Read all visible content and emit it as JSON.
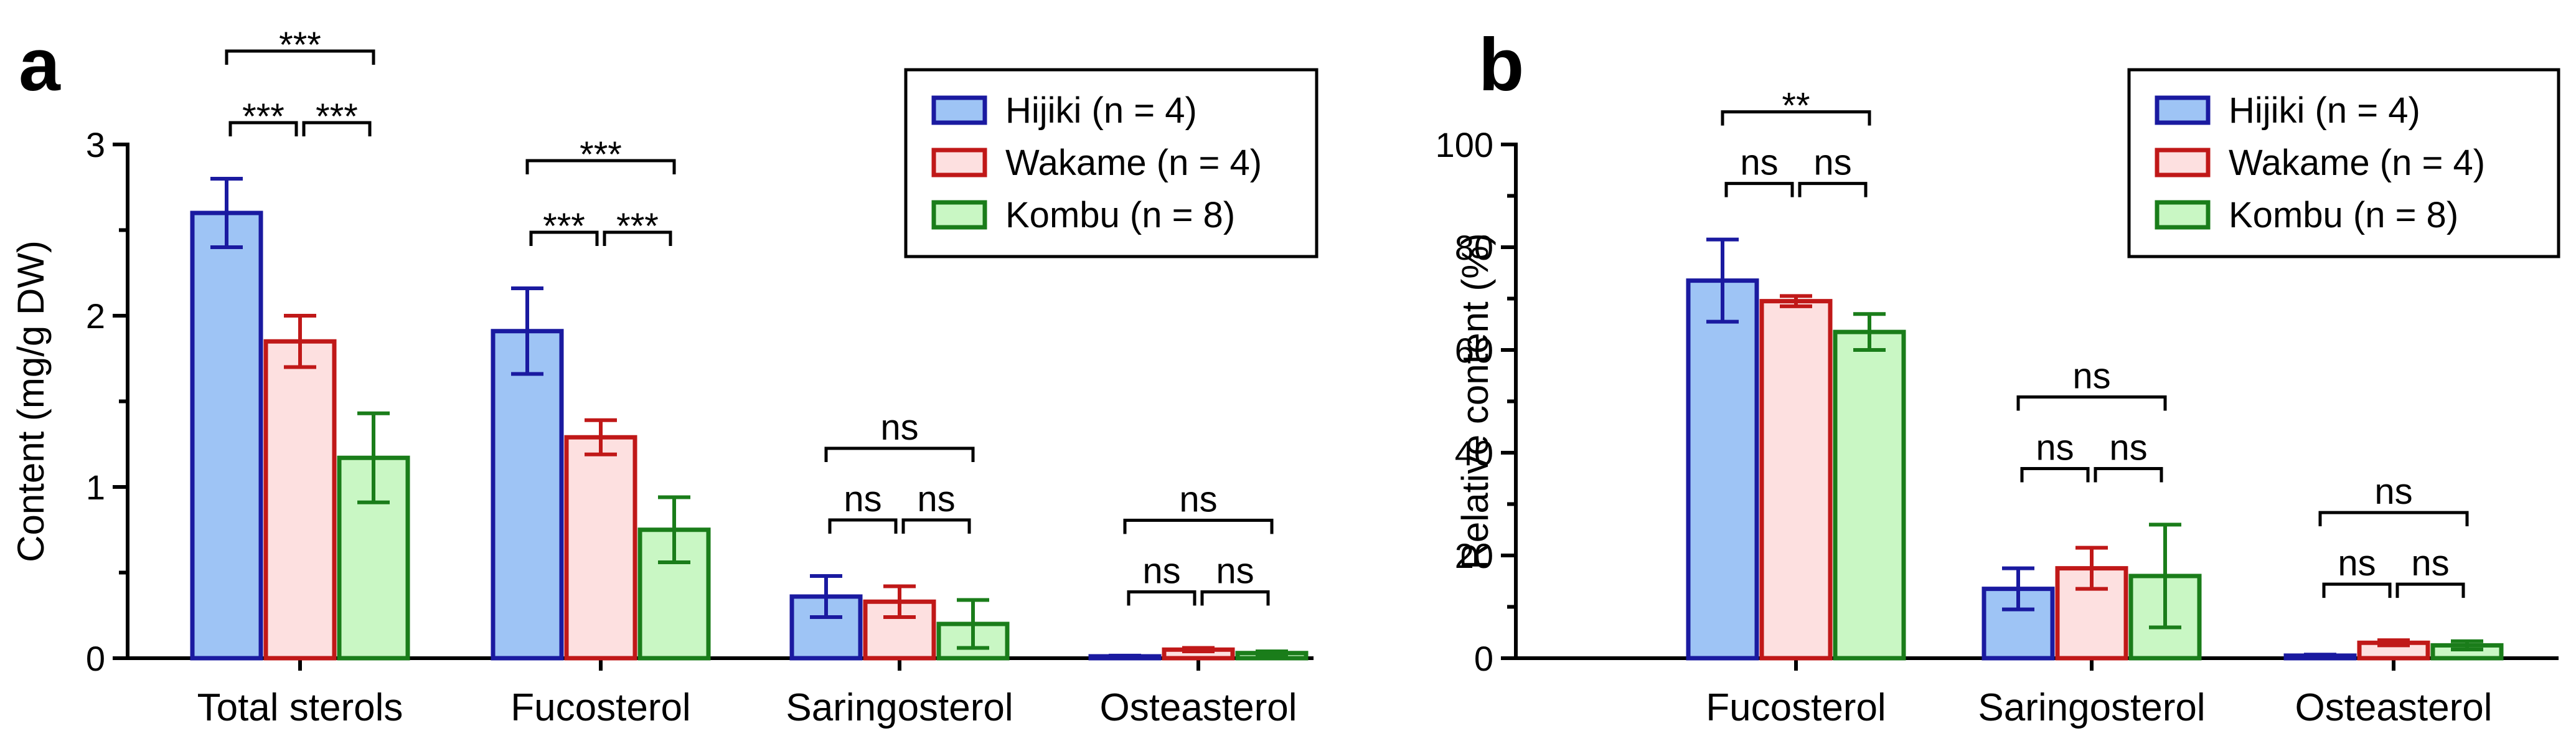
{
  "chart_data": [
    {
      "panel": "a",
      "type": "bar",
      "ylabel": "Content (mg/g DW)",
      "ylim": [
        0,
        3
      ],
      "yticks": [
        "0",
        "1",
        "2",
        "3"
      ],
      "categories": [
        "Total sterols",
        "Fucosterol",
        "Saringosterol",
        "Osteasterol"
      ],
      "series": [
        {
          "name": "Hijiki (n = 4)",
          "values": [
            2.6,
            1.91,
            0.36,
            0.01
          ],
          "errors": [
            0.2,
            0.25,
            0.12,
            0.005
          ]
        },
        {
          "name": "Wakame (n = 4)",
          "values": [
            1.85,
            1.29,
            0.33,
            0.05
          ],
          "errors": [
            0.15,
            0.1,
            0.09,
            0.01
          ]
        },
        {
          "name": "Kombu (n = 8)",
          "values": [
            1.17,
            0.75,
            0.2,
            0.03
          ],
          "errors": [
            0.26,
            0.19,
            0.14,
            0.01
          ]
        }
      ],
      "significance": [
        {
          "category": 0,
          "pairs": [
            {
              "from": 0,
              "to": 1,
              "label": "***"
            },
            {
              "from": 1,
              "to": 2,
              "label": "***"
            },
            {
              "from": 0,
              "to": 2,
              "label": "***"
            }
          ]
        },
        {
          "category": 1,
          "pairs": [
            {
              "from": 0,
              "to": 1,
              "label": "***"
            },
            {
              "from": 1,
              "to": 2,
              "label": "***"
            },
            {
              "from": 0,
              "to": 2,
              "label": "***"
            }
          ]
        },
        {
          "category": 2,
          "pairs": [
            {
              "from": 0,
              "to": 1,
              "label": "ns"
            },
            {
              "from": 1,
              "to": 2,
              "label": "ns"
            },
            {
              "from": 0,
              "to": 2,
              "label": "ns"
            }
          ]
        },
        {
          "category": 3,
          "pairs": [
            {
              "from": 0,
              "to": 1,
              "label": "ns"
            },
            {
              "from": 1,
              "to": 2,
              "label": "ns"
            },
            {
              "from": 0,
              "to": 2,
              "label": "ns"
            }
          ]
        }
      ],
      "legend_position": "top-right"
    },
    {
      "panel": "b",
      "type": "bar",
      "ylabel": "Relative content (%)",
      "ylim": [
        0,
        100
      ],
      "yticks": [
        "0",
        "20",
        "40",
        "60",
        "80",
        "100"
      ],
      "categories": [
        "Fucosterol",
        "Saringosterol",
        "Osteasterol"
      ],
      "series": [
        {
          "name": "Hijiki (n = 4)",
          "values": [
            73.5,
            13.5,
            0.5
          ],
          "errors": [
            8,
            4,
            0.2
          ]
        },
        {
          "name": "Wakame (n = 4)",
          "values": [
            69.5,
            17.5,
            3
          ],
          "errors": [
            1,
            4,
            0.5
          ]
        },
        {
          "name": "Kombu (n = 8)",
          "values": [
            63.5,
            16,
            2.5
          ],
          "errors": [
            3.5,
            10,
            0.8
          ]
        }
      ],
      "significance": [
        {
          "category": 0,
          "pairs": [
            {
              "from": 0,
              "to": 1,
              "label": "ns"
            },
            {
              "from": 1,
              "to": 2,
              "label": "ns"
            },
            {
              "from": 0,
              "to": 2,
              "label": "**"
            }
          ]
        },
        {
          "category": 1,
          "pairs": [
            {
              "from": 0,
              "to": 1,
              "label": "ns"
            },
            {
              "from": 1,
              "to": 2,
              "label": "ns"
            },
            {
              "from": 0,
              "to": 2,
              "label": "ns"
            }
          ]
        },
        {
          "category": 2,
          "pairs": [
            {
              "from": 0,
              "to": 1,
              "label": "ns"
            },
            {
              "from": 1,
              "to": 2,
              "label": "ns"
            },
            {
              "from": 0,
              "to": 2,
              "label": "ns"
            }
          ]
        }
      ],
      "legend_position": "top-right"
    }
  ],
  "colors": {
    "series_fill": [
      "#9ec4f5",
      "#fde0e0",
      "#c9f7c4"
    ],
    "series_stroke": [
      "#1a1aa0",
      "#c01818",
      "#1a7d1a"
    ]
  }
}
